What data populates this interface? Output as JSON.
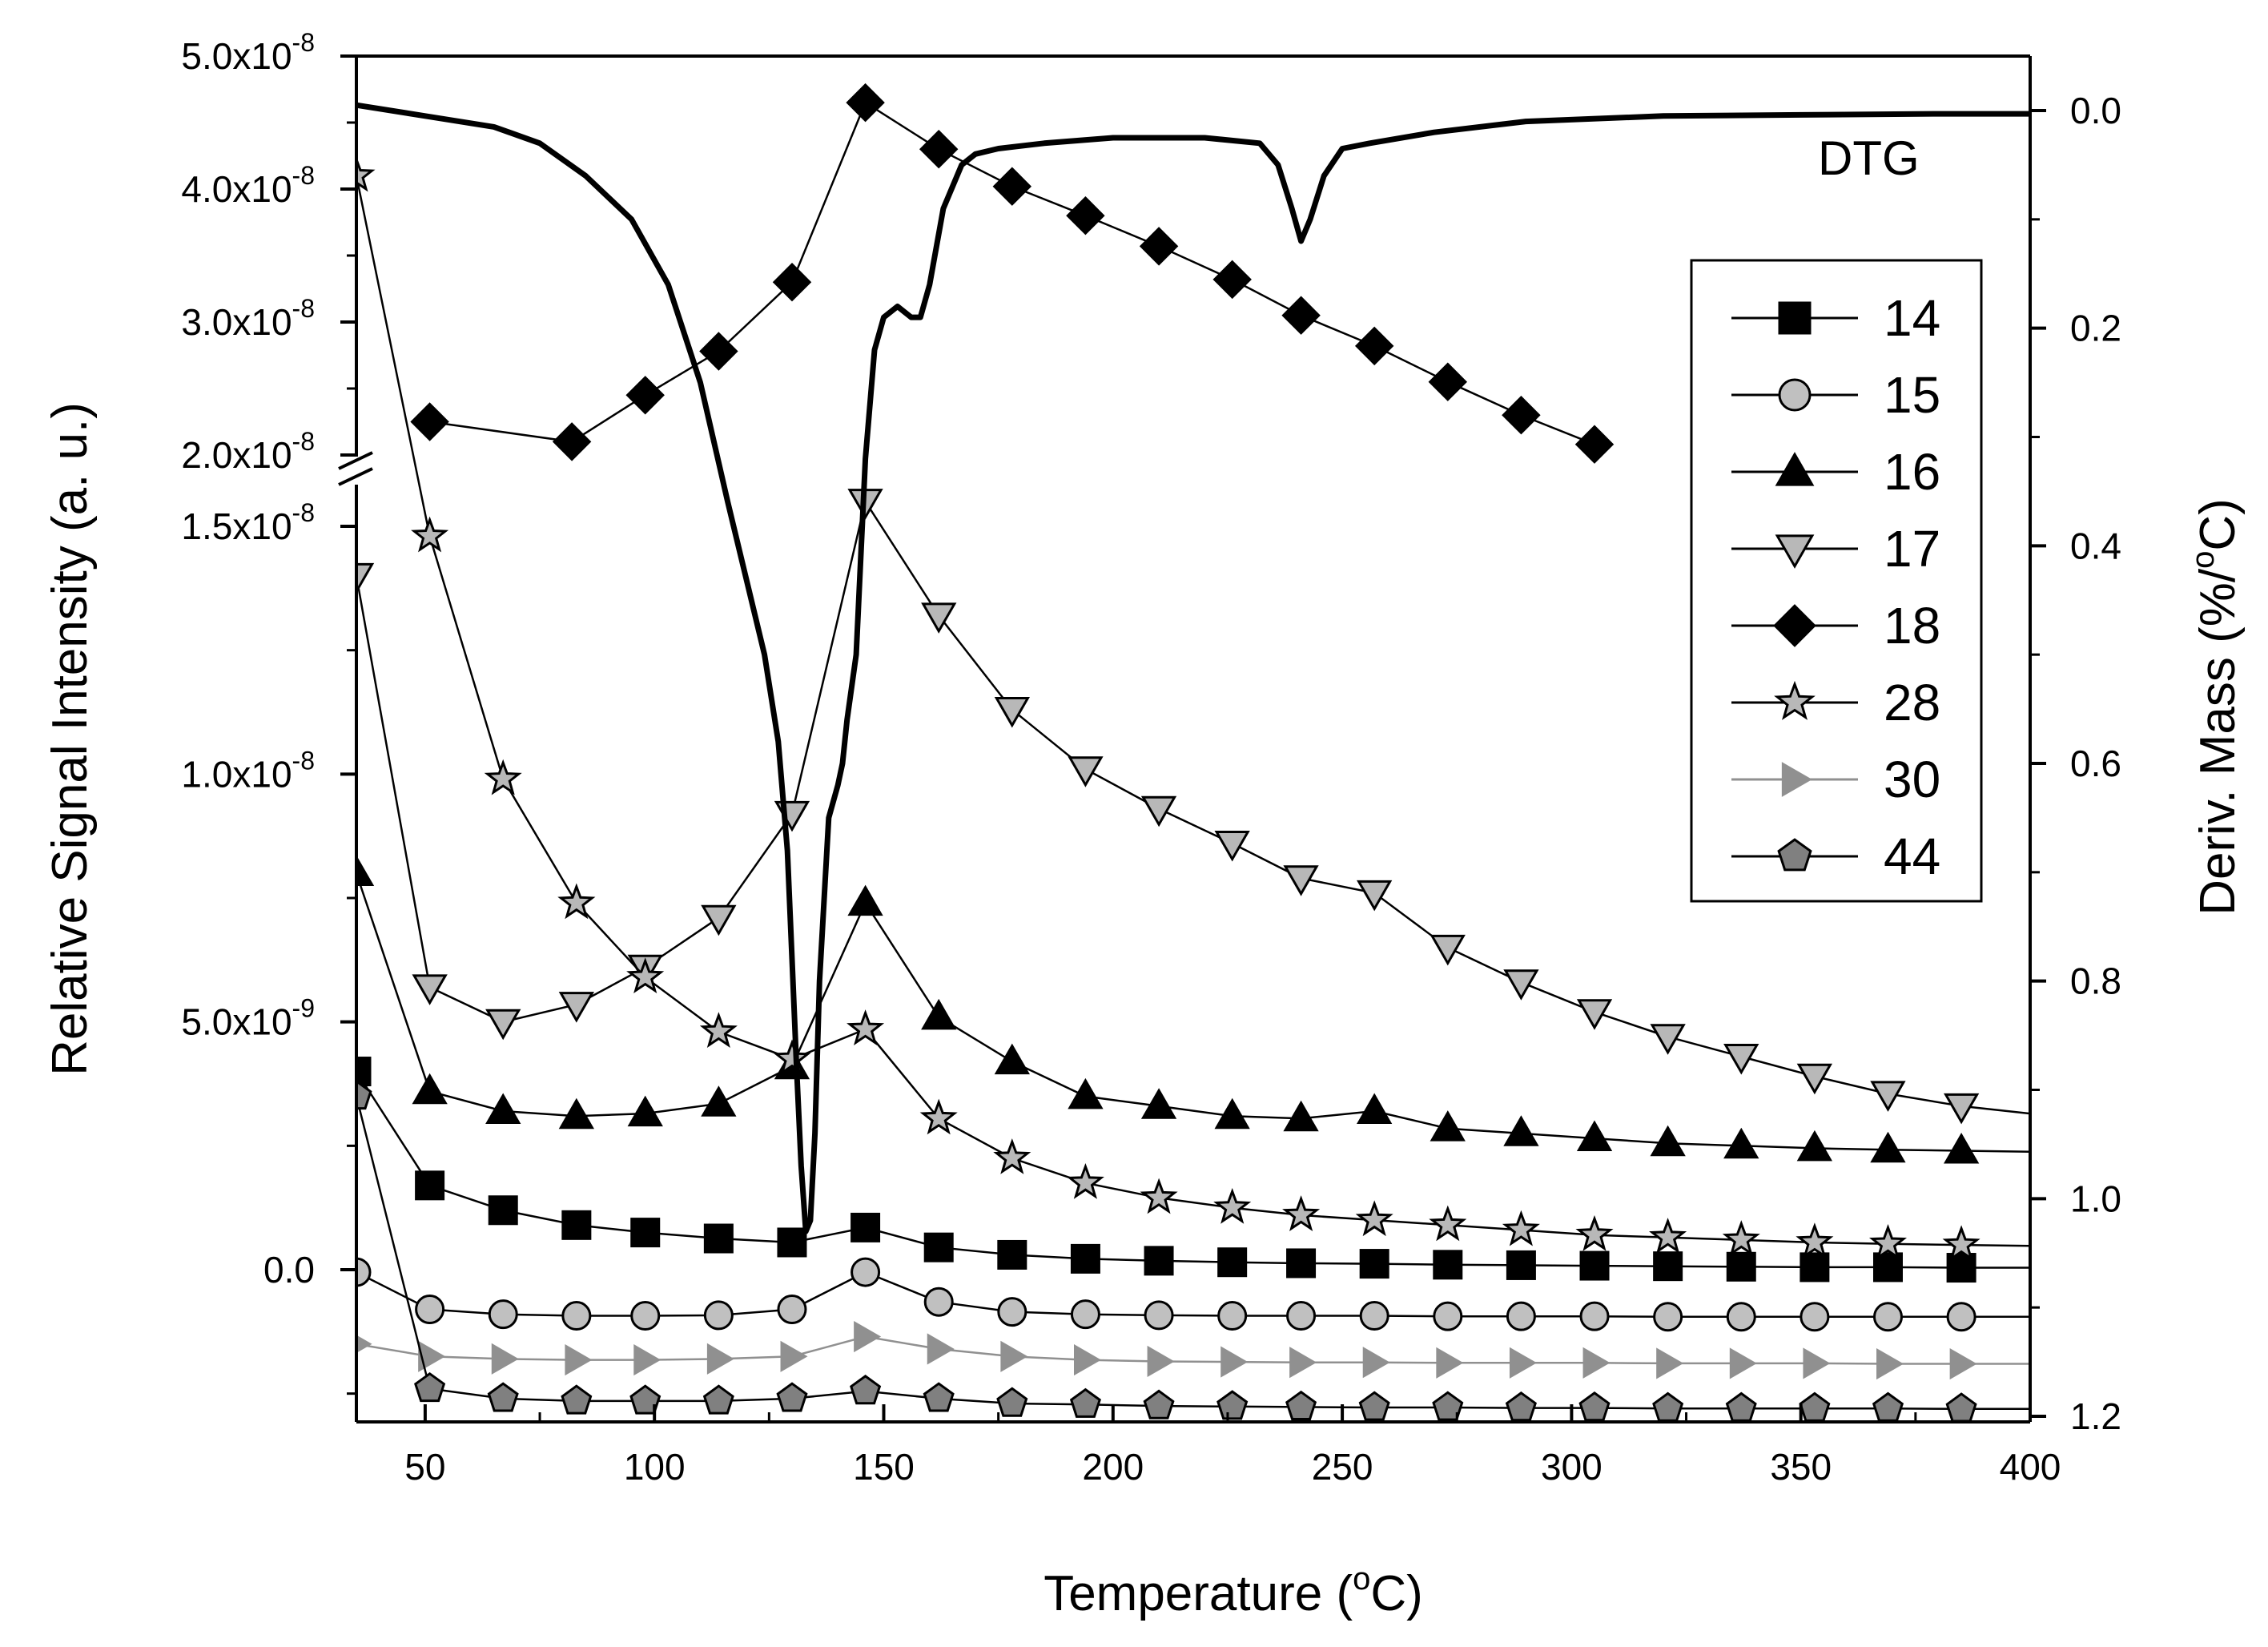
{
  "chart_data": {
    "type": "line",
    "title": "",
    "xlabel": "Temperature (",
    "xlabel_unit": "oC)",
    "ylabel": "Relative Signal Intensity (a. u.)",
    "y2label": "Deriv. Mass (%/",
    "y2label_unit": "oC)",
    "xlim": [
      35,
      400
    ],
    "x_ticks": [
      50,
      100,
      150,
      200,
      250,
      300,
      350,
      400
    ],
    "x_tick_labels": [
      "50",
      "100",
      "150",
      "200",
      "250",
      "300",
      "350",
      "400"
    ],
    "y_axis_break": {
      "lower_range": [
        -2.5e-09,
        1.65e-08
      ],
      "upper_range": [
        1.9e-08,
        5e-08
      ]
    },
    "y_ticks": [
      {
        "value": 0,
        "mantissa": "0.0",
        "exp": ""
      },
      {
        "value": 5e-09,
        "mantissa": "5.0x10",
        "exp": "-9"
      },
      {
        "value": 1e-08,
        "mantissa": "1.0x10",
        "exp": "-8"
      },
      {
        "value": 1.5e-08,
        "mantissa": "1.5x10",
        "exp": "-8"
      },
      {
        "value": 2e-08,
        "mantissa": "2.0x10",
        "exp": "-8"
      },
      {
        "value": 3e-08,
        "mantissa": "3.0x10",
        "exp": "-8"
      },
      {
        "value": 4e-08,
        "mantissa": "4.0x10",
        "exp": "-8"
      },
      {
        "value": 5e-08,
        "mantissa": "5.0x10",
        "exp": "-8"
      }
    ],
    "y2lim": [
      -0.05,
      1.2
    ],
    "y2_ticks": [
      0.0,
      0.2,
      0.4,
      0.6,
      0.8,
      1.0,
      1.2
    ],
    "y2_tick_labels": [
      "0.0",
      "0.2",
      "0.4",
      "0.6",
      "0.8",
      "1.0",
      "1.2"
    ],
    "legend_position": "right",
    "dtg_label": "DTG",
    "series": [
      {
        "name": "14",
        "marker": "square",
        "color": "#000000",
        "x": [
          35,
          51,
          67,
          83,
          98,
          114,
          130,
          146,
          162,
          178,
          194,
          210,
          226,
          241,
          257,
          273,
          289,
          305,
          321,
          337,
          353,
          369,
          385,
          400
        ],
        "y": [
          4e-09,
          1.7e-09,
          1.2e-09,
          9e-10,
          7.5e-10,
          6.3e-10,
          5.5e-10,
          8.5e-10,
          4.5e-10,
          3e-10,
          2.2e-10,
          1.8e-10,
          1.5e-10,
          1.3e-10,
          1.2e-10,
          1e-10,
          9e-11,
          8e-11,
          7e-11,
          6e-11,
          5e-11,
          5e-11,
          4e-11,
          4e-11
        ]
      },
      {
        "name": "15",
        "marker": "circle",
        "color": "#c0c0c0",
        "x": [
          35,
          51,
          67,
          83,
          98,
          114,
          130,
          146,
          162,
          178,
          194,
          210,
          226,
          241,
          257,
          273,
          289,
          305,
          321,
          337,
          353,
          369,
          385,
          400
        ],
        "y": [
          -5e-11,
          -8e-10,
          -9e-10,
          -9.3e-10,
          -9.3e-10,
          -9.2e-10,
          -8e-10,
          -5e-11,
          -6.5e-10,
          -8.5e-10,
          -9e-10,
          -9.2e-10,
          -9.3e-10,
          -9.3e-10,
          -9.3e-10,
          -9.4e-10,
          -9.4e-10,
          -9.4e-10,
          -9.5e-10,
          -9.5e-10,
          -9.5e-10,
          -9.5e-10,
          -9.5e-10,
          -9.5e-10
        ]
      },
      {
        "name": "16",
        "marker": "triangle-up",
        "color": "#000000",
        "x": [
          35,
          51,
          67,
          83,
          98,
          114,
          130,
          146,
          162,
          178,
          194,
          210,
          226,
          241,
          257,
          273,
          289,
          305,
          321,
          337,
          353,
          369,
          385,
          400
        ],
        "y": [
          8e-09,
          3.6e-09,
          3.2e-09,
          3.1e-09,
          3.15e-09,
          3.35e-09,
          4.1e-09,
          7.4e-09,
          5.1e-09,
          4.2e-09,
          3.5e-09,
          3.3e-09,
          3.1e-09,
          3.05e-09,
          3.2e-09,
          2.85e-09,
          2.75e-09,
          2.65e-09,
          2.55e-09,
          2.5e-09,
          2.45e-09,
          2.42e-09,
          2.4e-09,
          2.38e-09
        ]
      },
      {
        "name": "17",
        "marker": "triangle-down",
        "color": "#b8b8b8",
        "x": [
          35,
          51,
          67,
          83,
          98,
          114,
          130,
          146,
          162,
          178,
          194,
          210,
          226,
          241,
          257,
          273,
          289,
          305,
          321,
          337,
          353,
          369,
          385,
          400
        ],
        "y": [
          1.4e-08,
          5.7e-09,
          5e-09,
          5.35e-09,
          6.1e-09,
          7.1e-09,
          9.2e-09,
          1.55e-08,
          1.32e-08,
          1.13e-08,
          1.01e-08,
          9.3e-09,
          8.6e-09,
          7.9e-09,
          7.6e-09,
          6.5e-09,
          5.8e-09,
          5.2e-09,
          4.7e-09,
          4.3e-09,
          3.9e-09,
          3.55e-09,
          3.3e-09,
          3.15e-09
        ]
      },
      {
        "name": "18",
        "marker": "diamond",
        "color": "#000000",
        "x": [
          51,
          82,
          98,
          114,
          130,
          146,
          162,
          178,
          194,
          210,
          226,
          241,
          257,
          273,
          289,
          305
        ],
        "y": [
          2.25e-08,
          2.1e-08,
          2.45e-08,
          2.78e-08,
          3.3e-08,
          4.65e-08,
          4.3e-08,
          4.02e-08,
          3.8e-08,
          3.57e-08,
          3.32e-08,
          3.05e-08,
          2.82e-08,
          2.55e-08,
          2.3e-08,
          2.08e-08
        ]
      },
      {
        "name": "28",
        "marker": "star",
        "color": "#b8b8b8",
        "x": [
          35,
          51,
          67,
          83,
          98,
          114,
          130,
          146,
          162,
          178,
          194,
          210,
          226,
          241,
          257,
          273,
          289,
          305,
          321,
          337,
          353,
          369,
          385,
          400
        ],
        "y": [
          4.1e-08,
          1.48e-08,
          9.9e-09,
          7.4e-09,
          5.9e-09,
          4.8e-09,
          4.25e-09,
          4.85e-09,
          3.05e-09,
          2.25e-09,
          1.75e-09,
          1.45e-09,
          1.25e-09,
          1.1e-09,
          1e-09,
          9e-10,
          8e-10,
          7e-10,
          6.5e-10,
          6e-10,
          5.5e-10,
          5.2e-10,
          5e-10,
          4.8e-10
        ]
      },
      {
        "name": "30",
        "marker": "triangle-right",
        "color": "#909090",
        "x": [
          35,
          51,
          67,
          83,
          98,
          114,
          130,
          146,
          162,
          178,
          194,
          210,
          226,
          241,
          257,
          273,
          289,
          305,
          321,
          337,
          353,
          369,
          385,
          400
        ],
        "y": [
          -1.5e-09,
          -1.75e-09,
          -1.8e-09,
          -1.82e-09,
          -1.82e-09,
          -1.8e-09,
          -1.75e-09,
          -1.35e-09,
          -1.6e-09,
          -1.75e-09,
          -1.82e-09,
          -1.85e-09,
          -1.86e-09,
          -1.87e-09,
          -1.87e-09,
          -1.88e-09,
          -1.88e-09,
          -1.88e-09,
          -1.89e-09,
          -1.89e-09,
          -1.89e-09,
          -1.9e-09,
          -1.9e-09,
          -1.9e-09
        ]
      },
      {
        "name": "44",
        "marker": "pentagon",
        "color": "#808080",
        "x": [
          35,
          51,
          67,
          83,
          98,
          114,
          130,
          146,
          162,
          178,
          194,
          210,
          226,
          241,
          257,
          273,
          289,
          305,
          321,
          337,
          353,
          369,
          385,
          400
        ],
        "y": [
          3.5e-09,
          -2.4e-09,
          -2.6e-09,
          -2.65e-09,
          -2.65e-09,
          -2.65e-09,
          -2.6e-09,
          -2.45e-09,
          -2.6e-09,
          -2.7e-09,
          -2.72e-09,
          -2.75e-09,
          -2.76e-09,
          -2.77e-09,
          -2.78e-09,
          -2.78e-09,
          -2.79e-09,
          -2.79e-09,
          -2.8e-09,
          -2.8e-09,
          -2.8e-09,
          -2.8e-09,
          -2.81e-09,
          -2.81e-09
        ]
      }
    ],
    "dtg": {
      "name": "DTG",
      "axis": "right",
      "x": [
        35,
        50,
        65,
        75,
        85,
        95,
        103,
        110,
        116,
        120,
        124,
        127,
        129,
        130,
        131,
        132,
        133,
        134,
        135,
        136,
        138,
        140,
        141,
        142,
        144,
        146,
        148,
        150,
        153,
        156,
        158,
        160,
        163,
        167,
        170,
        175,
        185,
        200,
        220,
        232,
        236,
        239,
        241,
        243,
        246,
        250,
        256,
        270,
        290,
        320,
        350,
        380,
        400
      ],
      "y": [
        -0.005,
        0.005,
        0.015,
        0.03,
        0.06,
        0.1,
        0.16,
        0.25,
        0.36,
        0.43,
        0.5,
        0.58,
        0.68,
        0.78,
        0.88,
        0.97,
        1.03,
        1.02,
        0.94,
        0.8,
        0.65,
        0.62,
        0.6,
        0.56,
        0.5,
        0.32,
        0.22,
        0.19,
        0.18,
        0.19,
        0.19,
        0.16,
        0.09,
        0.05,
        0.04,
        0.035,
        0.03,
        0.025,
        0.025,
        0.03,
        0.05,
        0.09,
        0.12,
        0.1,
        0.06,
        0.035,
        0.03,
        0.02,
        0.01,
        0.005,
        0.004,
        0.003,
        0.003
      ]
    }
  }
}
